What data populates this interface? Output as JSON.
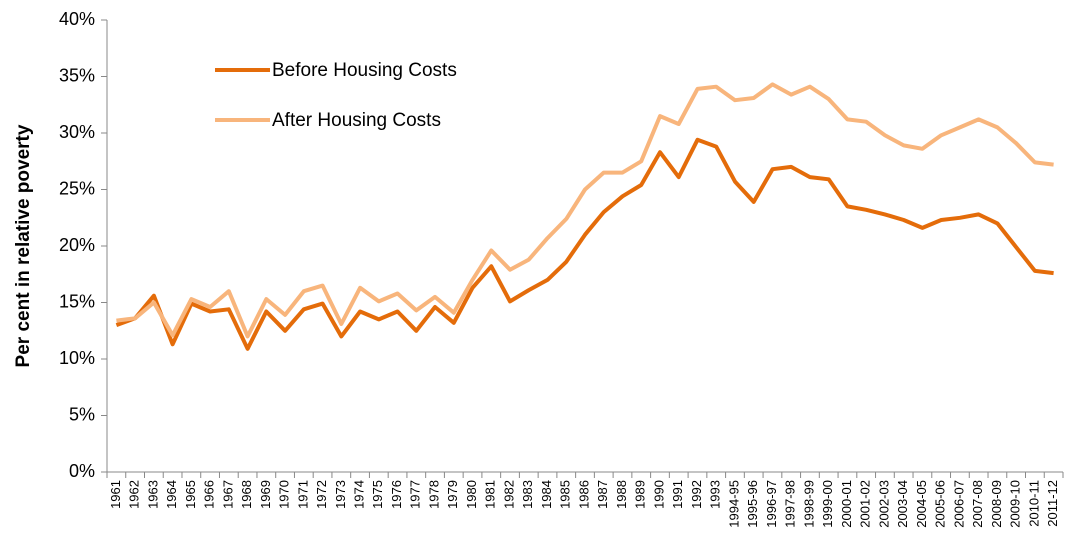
{
  "chart_data": {
    "type": "line",
    "ylabel": "Per cent in relative poverty",
    "categories": [
      "1961",
      "1962",
      "1963",
      "1964",
      "1965",
      "1966",
      "1967",
      "1968",
      "1969",
      "1970",
      "1971",
      "1972",
      "1973",
      "1974",
      "1975",
      "1976",
      "1977",
      "1978",
      "1979",
      "1980",
      "1981",
      "1982",
      "1983",
      "1984",
      "1985",
      "1986",
      "1987",
      "1988",
      "1989",
      "1990",
      "1991",
      "1992",
      "1993",
      "1994-95",
      "1995-96",
      "1996-97",
      "1997-98",
      "1998-99",
      "1999-00",
      "2000-01",
      "2001-02",
      "2002-03",
      "2003-04",
      "2004-05",
      "2005-06",
      "2006-07",
      "2007-08",
      "2008-09",
      "2009-10",
      "2010-11",
      "2011-12"
    ],
    "series": [
      {
        "name": "Before Housing Costs",
        "color": "#e46c0a",
        "values": [
          13.0,
          13.6,
          15.6,
          11.3,
          14.9,
          14.2,
          14.4,
          10.9,
          14.2,
          12.5,
          14.4,
          14.9,
          12.0,
          14.2,
          13.5,
          14.2,
          12.5,
          14.6,
          13.2,
          16.3,
          18.2,
          15.1,
          16.1,
          17.0,
          18.6,
          21.0,
          23.0,
          24.4,
          25.4,
          28.3,
          26.1,
          29.4,
          28.8,
          25.7,
          23.9,
          26.8,
          27.0,
          26.1,
          25.9,
          23.5,
          23.2,
          22.8,
          22.3,
          21.6,
          22.3,
          22.5,
          22.8,
          22.0,
          19.9,
          17.8,
          17.6
        ]
      },
      {
        "name": "After Housing Costs",
        "color": "#f8b57c",
        "values": [
          13.4,
          13.6,
          15.0,
          12.1,
          15.3,
          14.6,
          16.0,
          12.0,
          15.3,
          13.9,
          16.0,
          16.5,
          13.1,
          16.3,
          15.1,
          15.8,
          14.3,
          15.5,
          14.1,
          17.0,
          19.6,
          17.9,
          18.8,
          20.7,
          22.4,
          25.0,
          26.5,
          26.5,
          27.5,
          31.5,
          30.8,
          33.9,
          34.1,
          32.9,
          33.1,
          34.3,
          33.4,
          34.1,
          33.0,
          31.2,
          31.0,
          29.8,
          28.9,
          28.6,
          29.8,
          30.5,
          31.2,
          30.5,
          29.1,
          27.4,
          27.2
        ]
      }
    ],
    "ylim": [
      0,
      40
    ],
    "yticks": [
      {
        "value": 0,
        "label": "0%"
      },
      {
        "value": 5,
        "label": "5%"
      },
      {
        "value": 10,
        "label": "10%"
      },
      {
        "value": 15,
        "label": "15%"
      },
      {
        "value": 20,
        "label": "20%"
      },
      {
        "value": 25,
        "label": "25%"
      },
      {
        "value": 30,
        "label": "30%"
      },
      {
        "value": 35,
        "label": "35%"
      },
      {
        "value": 40,
        "label": "40%"
      }
    ]
  }
}
